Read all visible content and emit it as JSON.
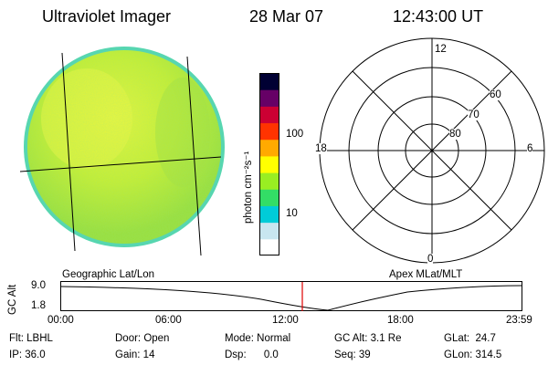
{
  "header": {
    "instrument": "Ultraviolet Imager",
    "date": "28 Mar 07",
    "time": "12:43:00 UT"
  },
  "colorbar": {
    "unit_label": "photon cm⁻²s⁻¹",
    "ticks": [
      "100",
      "10"
    ],
    "colors": [
      "#ffffff",
      "#c8e6f0",
      "#00ccd8",
      "#33dd66",
      "#99ee22",
      "#ffff00",
      "#ffaa00",
      "#ff3300",
      "#cc0033",
      "#660066",
      "#000033"
    ]
  },
  "polar": {
    "mlt_labels": {
      "top": "12",
      "bottom": "0",
      "left": "18",
      "right": "6"
    },
    "lat_labels": [
      "60",
      "70",
      "80"
    ]
  },
  "labels": {
    "geographic": "Geographic Lat/Lon",
    "apex": "Apex MLat/MLT"
  },
  "orbit_plot": {
    "ylabel": "GC Alt",
    "y_ticks": [
      "9.0",
      "1.8"
    ],
    "x_ticks": [
      "00:00",
      "06:00",
      "12:00",
      "18:00",
      "23:59"
    ],
    "current_time_marker": "12:43"
  },
  "status": {
    "filter": "Flt: LBHL",
    "ip": "IP: 36.0",
    "door": "Door: Open",
    "gain": "Gain: 14",
    "mode": "Mode: Normal",
    "dsp": "Dsp:      0.0",
    "gc_alt": "GC Alt: 3.1 Re",
    "seq": "Seq: 39",
    "glat": "GLat:  24.7",
    "glon": "GLon: 314.5"
  }
}
